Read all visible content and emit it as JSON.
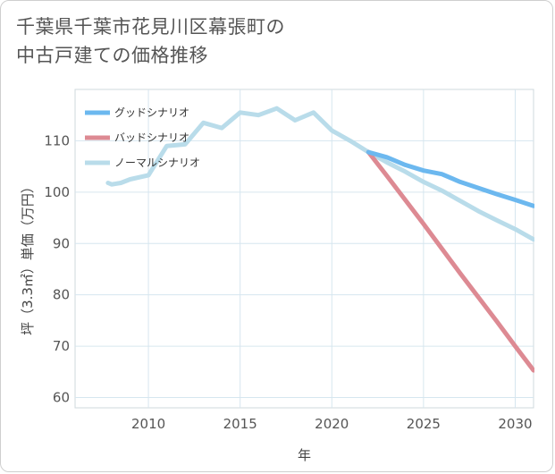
{
  "title": {
    "line1": "千葉県千葉市花見川区幕張町の",
    "line2": "中古戸建ての価格推移"
  },
  "chart_data": {
    "type": "line",
    "title": "千葉県千葉市花見川区幕張町の中古戸建ての価格推移",
    "xlabel": "年",
    "ylabel": "坪（3.3㎡）単価（万円）",
    "xlim": [
      2006,
      2031
    ],
    "ylim": [
      58,
      120
    ],
    "x_ticks": [
      2010,
      2015,
      2020,
      2025,
      2030
    ],
    "y_ticks": [
      60,
      70,
      80,
      90,
      100,
      110
    ],
    "legend_position": "top-left",
    "grid": true,
    "series": [
      {
        "name": "グッドシナリオ",
        "color": "#6cb8ef",
        "x": [
          2022,
          2023,
          2024,
          2025,
          2026,
          2027,
          2028,
          2029,
          2030,
          2031
        ],
        "y": [
          107.8,
          106.8,
          105.3,
          104.2,
          103.5,
          102.0,
          100.8,
          99.6,
          98.5,
          97.3
        ]
      },
      {
        "name": "バッドシナリオ",
        "color": "#dd8a93",
        "x": [
          2022,
          2023,
          2024,
          2025,
          2026,
          2027,
          2028,
          2029,
          2030,
          2031
        ],
        "y": [
          107.8,
          103.2,
          98.5,
          93.8,
          89.0,
          84.2,
          79.5,
          74.8,
          70.0,
          65.3
        ]
      },
      {
        "name": "ノーマルシナリオ",
        "color": "#b9dcea",
        "x": [
          2007.8,
          2008,
          2008.5,
          2009,
          2010,
          2011,
          2012,
          2013,
          2014,
          2015,
          2016,
          2017,
          2018,
          2019,
          2020,
          2021,
          2022,
          2023,
          2024,
          2025,
          2026,
          2027,
          2028,
          2029,
          2030,
          2031
        ],
        "y": [
          101.8,
          101.5,
          101.8,
          102.5,
          103.3,
          109.0,
          109.3,
          113.5,
          112.5,
          115.5,
          115.0,
          116.3,
          114.0,
          115.5,
          112.0,
          110.0,
          107.8,
          105.8,
          104.0,
          102.0,
          100.3,
          98.3,
          96.3,
          94.5,
          92.8,
          90.8
        ]
      }
    ]
  }
}
